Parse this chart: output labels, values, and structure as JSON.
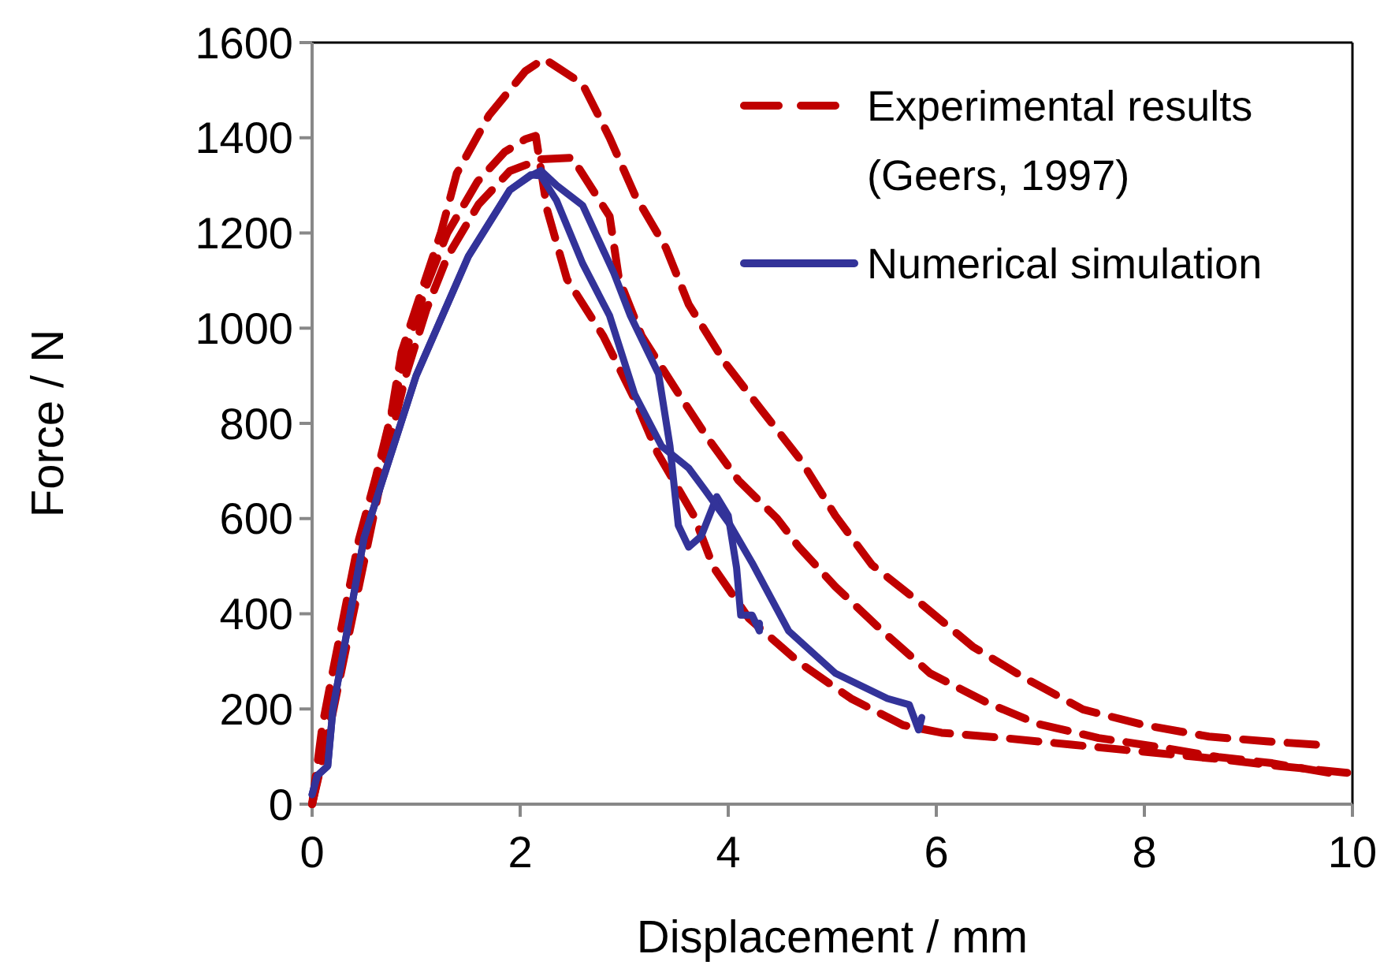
{
  "chart_data": {
    "type": "line",
    "xlabel": "Displacement / mm",
    "ylabel": "Force / N",
    "xlim": [
      0,
      10
    ],
    "ylim": [
      0,
      1600
    ],
    "xticks": [
      0,
      2,
      4,
      6,
      8,
      10
    ],
    "yticks": [
      0,
      200,
      400,
      600,
      800,
      1000,
      1200,
      1400,
      1600
    ],
    "grid": false,
    "legend": "top right",
    "marker": "none",
    "series": [
      {
        "name": "Experimental results (Geers, 1997)",
        "color": "#c00000",
        "line_style": "dashed",
        "x": [
          0,
          0.1,
          0.21,
          0.33,
          0.45,
          0.61,
          0.76,
          0.86,
          1.04,
          1.24,
          1.39,
          1.7,
          2.05,
          2.23,
          2.6,
          2.86,
          3.1,
          3.4,
          3.62,
          3.97,
          4.32,
          4.7,
          5.03,
          5.38,
          5.86,
          6.35,
          6.85,
          7.41,
          8.0,
          8.62,
          9.17,
          9.65
        ],
        "values": [
          0,
          166,
          291,
          424,
          556,
          685,
          818,
          950,
          1070,
          1202,
          1325,
          1447,
          1540,
          1566,
          1513,
          1400,
          1281,
          1169,
          1050,
          927,
          828,
          722,
          606,
          503,
          420,
          331,
          265,
          199,
          166,
          142,
          132,
          125
        ]
      },
      {
        "color": "#c00000",
        "line_style": "dashed",
        "x": [
          0,
          0.15,
          0.3,
          0.5,
          0.7,
          0.9,
          1.1,
          1.3,
          1.59,
          1.85,
          2.05,
          2.15,
          2.26,
          2.45,
          2.8,
          3.1,
          3.32,
          3.67,
          3.86,
          4.2,
          4.68,
          5.18,
          5.68,
          6.05,
          6.6,
          7.3,
          8.0,
          8.7,
          9.3,
          9.95
        ],
        "values": [
          0,
          150,
          320,
          540,
          760,
          950,
          1090,
          1200,
          1308,
          1370,
          1397,
          1404,
          1248,
          1103,
          983,
          851,
          738,
          606,
          497,
          390,
          298,
          222,
          166,
          150,
          140,
          125,
          110,
          95,
          80,
          66
        ]
      },
      {
        "color": "#c00000",
        "line_style": "dashed",
        "x": [
          0,
          0.15,
          0.3,
          0.5,
          0.7,
          0.9,
          1.1,
          1.3,
          1.6,
          1.9,
          2.2,
          2.5,
          2.86,
          2.95,
          3.17,
          3.5,
          3.8,
          4.1,
          4.47,
          4.68,
          5.03,
          5.48,
          5.94,
          6.5,
          6.97,
          7.56,
          8.17,
          8.71,
          9.23,
          9.77
        ],
        "values": [
          0,
          140,
          300,
          510,
          720,
          900,
          1040,
          1150,
          1260,
          1330,
          1355,
          1358,
          1235,
          1103,
          983,
          870,
          770,
          680,
          600,
          540,
          457,
          364,
          275,
          212,
          169,
          139,
          119,
          99,
          86,
          66
        ]
      },
      {
        "name": "Numerical simulation",
        "color": "#333399",
        "line_style": "solid",
        "x": [
          0,
          0.05,
          0.15,
          0.2,
          0.5,
          1.0,
          1.5,
          1.9,
          2.1,
          2.2,
          2.35,
          2.6,
          2.9,
          3.06,
          3.33,
          3.44,
          3.52,
          3.62,
          3.74,
          3.89,
          4.0,
          4.08,
          4.12,
          4.23,
          4.3,
          4.3
        ],
        "values": [
          20,
          60,
          80,
          200,
          560,
          900,
          1150,
          1290,
          1320,
          1331,
          1300,
          1258,
          1116,
          1026,
          904,
          752,
          586,
          540,
          563,
          646,
          606,
          497,
          397,
          397,
          364,
          380
        ]
      },
      {
        "color": "#333399",
        "line_style": "solid",
        "x": [
          0,
          0.05,
          0.15,
          0.2,
          0.5,
          1.0,
          1.5,
          1.9,
          2.1,
          2.2,
          2.35,
          2.6,
          2.86,
          3.1,
          3.36,
          3.62,
          3.77,
          4.02,
          4.23,
          4.58,
          5.03,
          5.53,
          5.74,
          5.83,
          5.86
        ],
        "values": [
          20,
          60,
          80,
          200,
          560,
          900,
          1150,
          1290,
          1322,
          1320,
          1268,
          1136,
          1026,
          861,
          752,
          706,
          662,
          586,
          507,
          364,
          275,
          222,
          209,
          156,
          182
        ]
      }
    ]
  }
}
